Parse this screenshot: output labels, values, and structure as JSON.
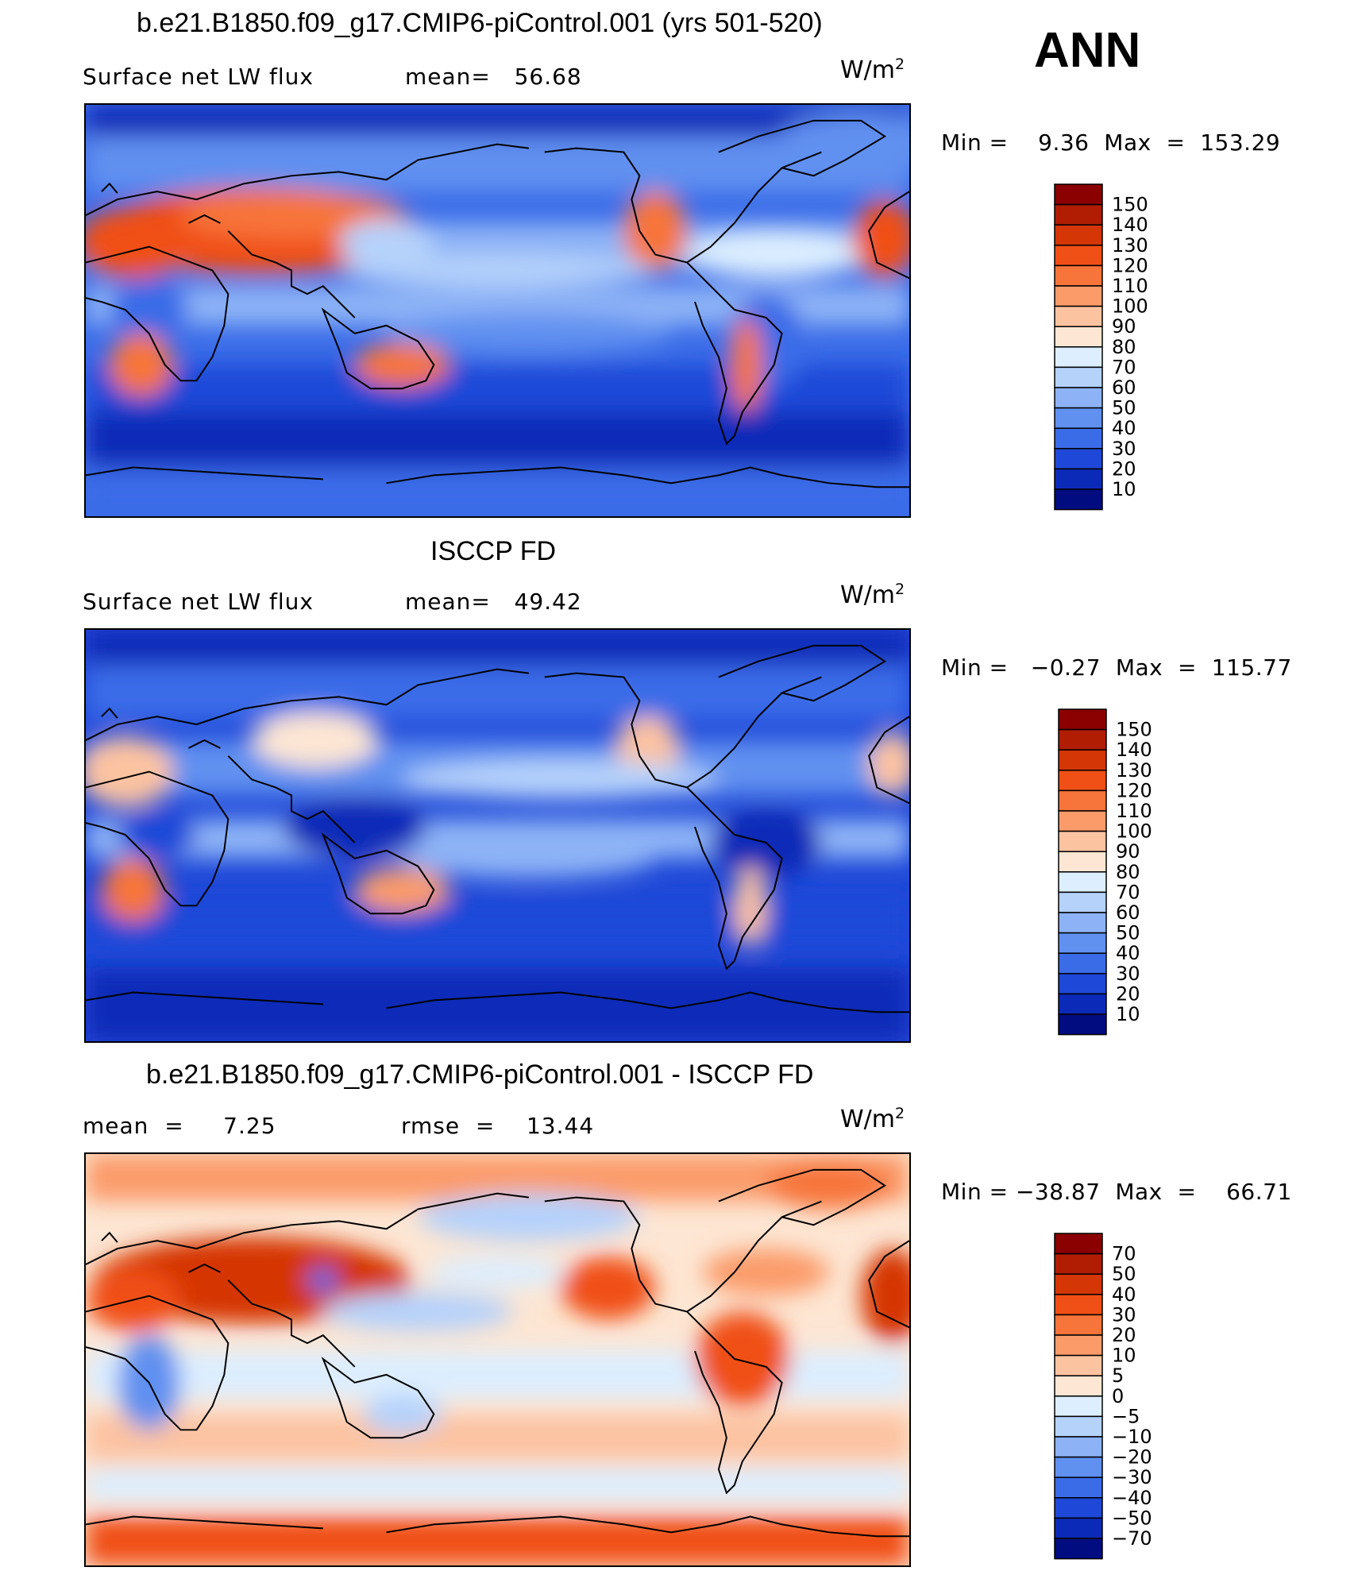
{
  "season": "ANN",
  "units_base": "W/m",
  "units_exp": "2",
  "panels": [
    {
      "title": "b.e21.B1850.f09_g17.CMIP6-piControl.001 (yrs 501-520)",
      "left_label": "Surface net LW flux",
      "right_label": "mean=   56.68",
      "min_max": "Min =    9.36  Max  =  153.29"
    },
    {
      "title": "ISCCP FD",
      "left_label": "Surface net LW flux",
      "right_label": "mean=   49.42",
      "min_max": "Min =   −0.27  Max  =  115.77"
    },
    {
      "title": "b.e21.B1850.f09_g17.CMIP6-piControl.001 - ISCCP FD",
      "left_label": "mean  =     7.25",
      "right_label": "rmse  =    13.44",
      "min_max": "Min = −38.87  Max  =    66.71"
    }
  ],
  "chart_data": [
    {
      "type": "heatmap",
      "title": "b.e21.B1850.f09_g17.CMIP6-piControl.001 (yrs 501-520)",
      "variable": "Surface net LW flux",
      "units": "W/m2",
      "mean": 56.68,
      "min": 9.36,
      "max": 153.29,
      "colorbar_levels": [
        150,
        140,
        130,
        120,
        110,
        100,
        90,
        80,
        70,
        60,
        50,
        40,
        30,
        20,
        10
      ],
      "colorbar_colors": [
        "#8b0000",
        "#b01d03",
        "#d53606",
        "#f04f15",
        "#f7743a",
        "#fb9b6a",
        "#fcc3a1",
        "#fde6d3",
        "#dceeff",
        "#b5d2fb",
        "#8db3f6",
        "#6090f0",
        "#3a6ce8",
        "#1e48d8",
        "#0c2ab8",
        "#000c80"
      ]
    },
    {
      "type": "heatmap",
      "title": "ISCCP FD",
      "variable": "Surface net LW flux",
      "units": "W/m2",
      "mean": 49.42,
      "min": -0.27,
      "max": 115.77,
      "colorbar_levels": [
        150,
        140,
        130,
        120,
        110,
        100,
        90,
        80,
        70,
        60,
        50,
        40,
        30,
        20,
        10
      ],
      "colorbar_colors": [
        "#8b0000",
        "#b01d03",
        "#d53606",
        "#f04f15",
        "#f7743a",
        "#fb9b6a",
        "#fcc3a1",
        "#fde6d3",
        "#dceeff",
        "#b5d2fb",
        "#8db3f6",
        "#6090f0",
        "#3a6ce8",
        "#1e48d8",
        "#0c2ab8",
        "#000c80"
      ]
    },
    {
      "type": "heatmap",
      "title": "b.e21.B1850.f09_g17.CMIP6-piControl.001 - ISCCP FD",
      "units": "W/m2",
      "mean": 7.25,
      "rmse": 13.44,
      "min": -38.87,
      "max": 66.71,
      "colorbar_levels": [
        "70",
        "50",
        "40",
        "30",
        "20",
        "10",
        "5",
        "0",
        "−5",
        "−10",
        "−20",
        "−30",
        "−40",
        "−50",
        "−70"
      ],
      "colorbar_colors": [
        "#8b0000",
        "#b01d03",
        "#d53606",
        "#f04f15",
        "#f7743a",
        "#fb9b6a",
        "#fcc3a1",
        "#fde6d3",
        "#dceeff",
        "#b5d2fb",
        "#8db3f6",
        "#6090f0",
        "#3a6ce8",
        "#1e48d8",
        "#0c2ab8",
        "#000c80"
      ]
    }
  ]
}
